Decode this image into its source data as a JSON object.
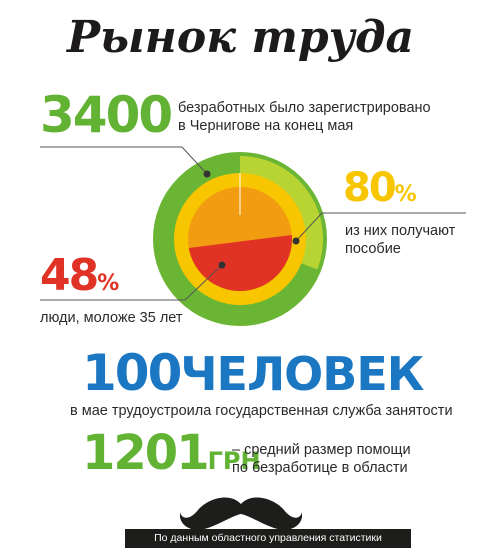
{
  "title": "Рынок труда",
  "stat_unemployed": {
    "value": "3400",
    "text_line1": "безработных было зарегистрировано",
    "text_line2": "в Чернигове на конец мая"
  },
  "stat_benefit": {
    "value": "80",
    "unit": "%",
    "text_line1": "из них получают",
    "text_line2": "пособие"
  },
  "stat_young": {
    "value": "48",
    "unit": "%",
    "text": "люди, моложе 35 лет"
  },
  "stat_employed": {
    "value": "100",
    "unit": "ЧЕЛОВЕК",
    "text": "в мае трудоустроила государственная служба занятости"
  },
  "stat_aid": {
    "value": "1201",
    "unit": "ГРН",
    "text_line1": "– средний размер помощи",
    "text_line2": "по безработице в области"
  },
  "source": "По данным областного управления статистики",
  "chart_data": {
    "type": "pie",
    "rings": [
      {
        "name": "безработные",
        "percent": 100,
        "color": "#6ab534"
      },
      {
        "name": "получают пособие",
        "percent": 80,
        "color": "#f7c600"
      },
      {
        "name": "моложе 35 лет",
        "percent": 48,
        "color": "#e03325"
      }
    ],
    "colors": {
      "outer": "#6ab534",
      "outer_gap": "#b7d433",
      "middle": "#f7c600",
      "inner": "#f29c11",
      "young": "#e03325"
    }
  }
}
